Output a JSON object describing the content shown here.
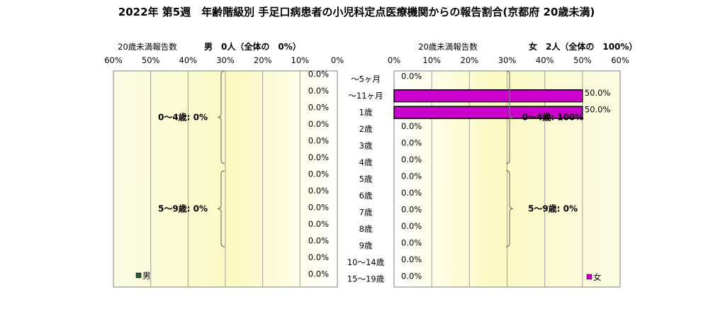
{
  "chart_data": {
    "type": "bar",
    "title": "2022年 第5週　年齢階級別 手足口病患者の小児科定点医療機関からの報告割合(京都府 20歳未満)",
    "categories": [
      "～5ヶ月",
      "～11ヶ月",
      "1歳",
      "2歳",
      "3歳",
      "4歳",
      "5歳",
      "6歳",
      "7歳",
      "8歳",
      "9歳",
      "10～14歳",
      "15～19歳"
    ],
    "xlim": [
      0,
      60
    ],
    "ticks": [
      "0%",
      "10%",
      "20%",
      "30%",
      "40%",
      "50%",
      "60%"
    ],
    "grid": true,
    "left_panel": {
      "header_label": "20歳未満報告数",
      "header_title": "男　0人（全体の　0%）",
      "legend": "男",
      "color": "#215a32",
      "values": [
        0,
        0,
        0,
        0,
        0,
        0,
        0,
        0,
        0,
        0,
        0,
        0,
        0
      ],
      "value_labels": [
        "0.0%",
        "0.0%",
        "0.0%",
        "0.0%",
        "0.0%",
        "0.0%",
        "0.0%",
        "0.0%",
        "0.0%",
        "0.0%",
        "0.0%",
        "0.0%",
        "0.0%"
      ],
      "groups": [
        {
          "label": "0～4歳: 0%",
          "from": 0,
          "to": 5
        },
        {
          "label": "5～9歳: 0%",
          "from": 6,
          "to": 10
        }
      ]
    },
    "right_panel": {
      "header_label": "20歳未満報告数",
      "header_title": "女　2人（全体の　100%）",
      "legend": "女",
      "color": "#cc00cc",
      "values": [
        0,
        50,
        50,
        0,
        0,
        0,
        0,
        0,
        0,
        0,
        0,
        0,
        0
      ],
      "value_labels": [
        "0.0%",
        "50.0%",
        "50.0%",
        "0.0%",
        "0.0%",
        "0.0%",
        "0.0%",
        "0.0%",
        "0.0%",
        "0.0%",
        "0.0%",
        "0.0%",
        "0.0%"
      ],
      "groups": [
        {
          "label": "0～4歳: 100%",
          "from": 0,
          "to": 5
        },
        {
          "label": "5～9歳: 0%",
          "from": 6,
          "to": 10
        }
      ]
    }
  }
}
